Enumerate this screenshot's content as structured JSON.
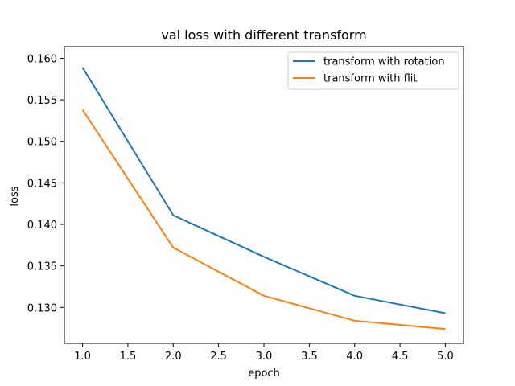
{
  "chart_data": {
    "type": "line",
    "title": "val loss with different transform",
    "xlabel": "epoch",
    "ylabel": "loss",
    "x": [
      1,
      2,
      3,
      4,
      5
    ],
    "xlim": [
      0.8,
      5.2
    ],
    "ylim": [
      0.12567,
      0.1614
    ],
    "xticks": [
      1.0,
      1.5,
      2.0,
      2.5,
      3.0,
      3.5,
      4.0,
      4.5,
      5.0
    ],
    "xtick_labels": [
      "1.0",
      "1.5",
      "2.0",
      "2.5",
      "3.0",
      "3.5",
      "4.0",
      "4.5",
      "5.0"
    ],
    "yticks": [
      0.13,
      0.135,
      0.14,
      0.145,
      0.15,
      0.155,
      0.16
    ],
    "ytick_labels": [
      "0.130",
      "0.135",
      "0.140",
      "0.145",
      "0.150",
      "0.155",
      "0.160"
    ],
    "grid": false,
    "legend_position": "top-right",
    "series": [
      {
        "name": "transform with rotation",
        "color": "#1f77b4",
        "values": [
          0.1589,
          0.1411,
          0.1361,
          0.1314,
          0.1293
        ]
      },
      {
        "name": "transform with flit",
        "color": "#ff7f0e",
        "values": [
          0.1538,
          0.1372,
          0.1314,
          0.1284,
          0.1274
        ]
      }
    ]
  }
}
